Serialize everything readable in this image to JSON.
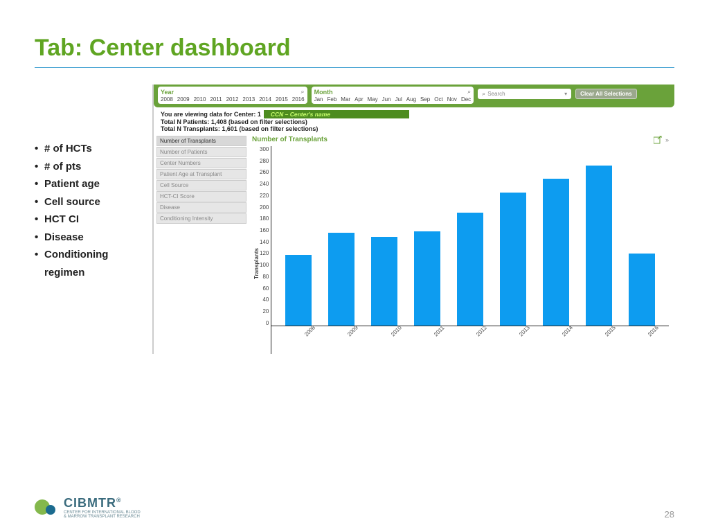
{
  "slide": {
    "title": "Tab:  Center dashboard",
    "page_number": "28"
  },
  "bullets": [
    "# of HCTs",
    "# of pts",
    "Patient age",
    "Cell source",
    "HCT CI",
    "Disease",
    "Conditioning regimen"
  ],
  "header": {
    "year_label": "Year",
    "years": [
      "2008",
      "2009",
      "2010",
      "2011",
      "2012",
      "2013",
      "2014",
      "2015",
      "2016"
    ],
    "month_label": "Month",
    "months": [
      "Jan",
      "Feb",
      "Mar",
      "Apr",
      "May",
      "Jun",
      "Jul",
      "Aug",
      "Sep",
      "Oct",
      "Nov",
      "Dec"
    ],
    "search_placeholder": "Search",
    "clear_label": "Clear All Selections"
  },
  "status": {
    "viewing_prefix": "You are viewing data for Center: 1",
    "center_badge": "CCN – Center's name",
    "patients": "Total N Patients: 1,408 (based on filter selections)",
    "transplants": "Total N Transplants: 1,601 (based on filter selections)"
  },
  "sidebar": [
    {
      "label": "Number of Transplants",
      "active": true
    },
    {
      "label": "Number of Patients",
      "active": false
    },
    {
      "label": "Center Numbers",
      "active": false
    },
    {
      "label": "Patient Age at Transplant",
      "active": false
    },
    {
      "label": "Cell Source",
      "active": false
    },
    {
      "label": "HCT-CI Score",
      "active": false
    },
    {
      "label": "Disease",
      "active": false
    },
    {
      "label": "Conditioning Intensity",
      "active": false
    }
  ],
  "chart": {
    "title": "Number of Transplants",
    "type": "bar",
    "ylabel": "Transplants",
    "ymax": 300,
    "ytick_step": 20,
    "categories": [
      "2008",
      "2009",
      "2010",
      "2011",
      "2012",
      "2013",
      "2014",
      "2015",
      "2016"
    ],
    "values": [
      118,
      155,
      148,
      157,
      189,
      222,
      245,
      268,
      120
    ],
    "bar_color": "#0d9cf0",
    "background_color": "#ffffff",
    "axis_color": "#222222",
    "label_fontsize": 8
  },
  "logo": {
    "main": "CIBMTR",
    "reg": "®",
    "sub1": "CENTER FOR INTERNATIONAL BLOOD",
    "sub2": "& MARROW TRANSPLANT RESEARCH"
  }
}
